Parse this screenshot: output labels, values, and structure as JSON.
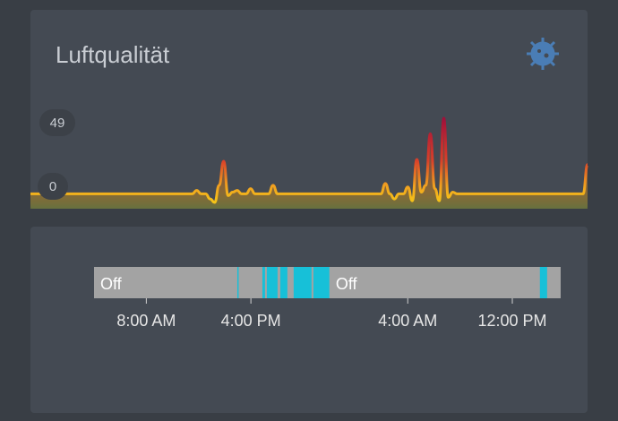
{
  "air_quality_card": {
    "title": "Luftqualität",
    "ylim": [
      0,
      49
    ],
    "values": [
      5,
      5,
      5,
      5,
      5,
      5,
      5,
      5,
      5,
      5,
      5,
      5,
      5,
      5,
      5,
      5,
      5,
      5,
      5,
      5,
      5,
      5,
      5,
      5,
      5,
      5,
      5,
      5,
      5,
      5,
      5,
      5,
      5,
      5,
      5,
      5,
      5,
      7,
      5,
      5,
      2,
      0,
      10,
      24,
      4,
      6,
      7,
      5,
      5,
      8,
      5,
      5,
      5,
      5,
      10,
      5,
      5,
      5,
      5,
      5,
      5,
      5,
      5,
      5,
      5,
      5,
      5,
      5,
      5,
      5,
      5,
      5,
      5,
      5,
      5,
      5,
      5,
      5,
      5,
      11,
      5,
      2,
      5,
      5,
      9,
      1,
      25,
      6,
      10,
      40,
      8,
      1,
      49,
      3,
      6,
      5,
      5,
      5,
      5,
      5,
      5,
      5,
      5,
      5,
      5,
      5,
      5,
      5,
      5,
      5,
      5,
      5,
      5,
      5,
      5,
      5,
      5,
      5,
      5,
      5,
      5,
      5,
      5,
      5,
      22
    ]
  },
  "timeline_card": {
    "xlim": [
      0,
      35.7
    ],
    "segments": [
      {
        "start": 0,
        "end": 35.7,
        "color": "#a3a3a3"
      },
      {
        "start": 0,
        "end": 10.96,
        "color": "#a3a3a3",
        "label": "Off"
      },
      {
        "start": 10.96,
        "end": 11.06,
        "color": "#17c0d8"
      },
      {
        "start": 12.88,
        "end": 13.08,
        "color": "#17c0d8"
      },
      {
        "start": 13.22,
        "end": 14.04,
        "color": "#17c0d8"
      },
      {
        "start": 14.25,
        "end": 14.79,
        "color": "#17c0d8"
      },
      {
        "start": 15.27,
        "end": 16.64,
        "color": "#17c0d8"
      },
      {
        "start": 16.78,
        "end": 18.01,
        "color": "#17c0d8"
      },
      {
        "start": 18.01,
        "end": 34.11,
        "color": "#a3a3a3",
        "label": "Off"
      },
      {
        "start": 34.11,
        "end": 34.66,
        "color": "#17c0d8"
      }
    ],
    "ticks": [
      {
        "value": 4,
        "label": "8:00 AM"
      },
      {
        "value": 12,
        "label": "4:00 PM"
      },
      {
        "value": 24,
        "label": "4:00 AM"
      },
      {
        "value": 32,
        "label": "12:00 PM"
      }
    ]
  }
}
